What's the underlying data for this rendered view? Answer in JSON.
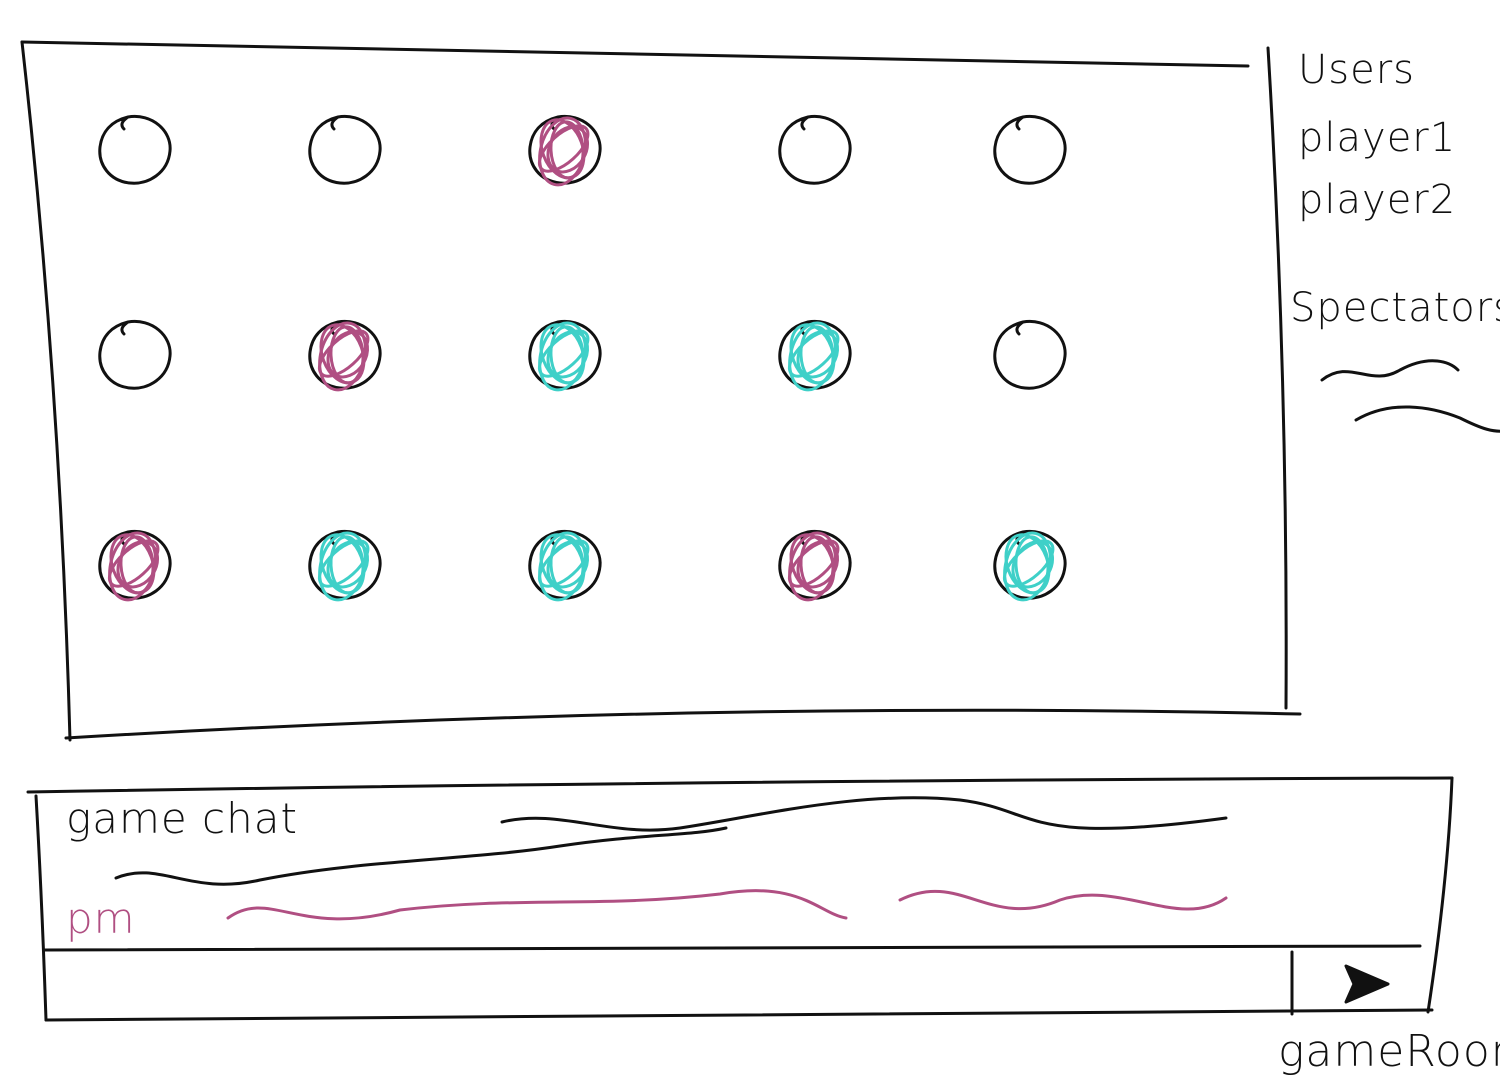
{
  "colors": {
    "ink": "#111111",
    "player1": "#b04f82",
    "player2": "#3fd0c8"
  },
  "board": {
    "rows": [
      [
        "empty",
        "empty",
        "player1",
        "empty",
        "empty"
      ],
      [
        "empty",
        "player1",
        "player2",
        "player2",
        "empty"
      ],
      [
        "player1",
        "player2",
        "player2",
        "player1",
        "player2"
      ]
    ]
  },
  "users": {
    "heading": "Users",
    "players": [
      "player1",
      "player2"
    ],
    "spectators_heading": "Spectators"
  },
  "chat": {
    "title": "game chat",
    "pm_label": "pm",
    "input_value": "",
    "send_icon": "send-arrow-icon"
  },
  "footer": {
    "label": "gameRoom"
  }
}
